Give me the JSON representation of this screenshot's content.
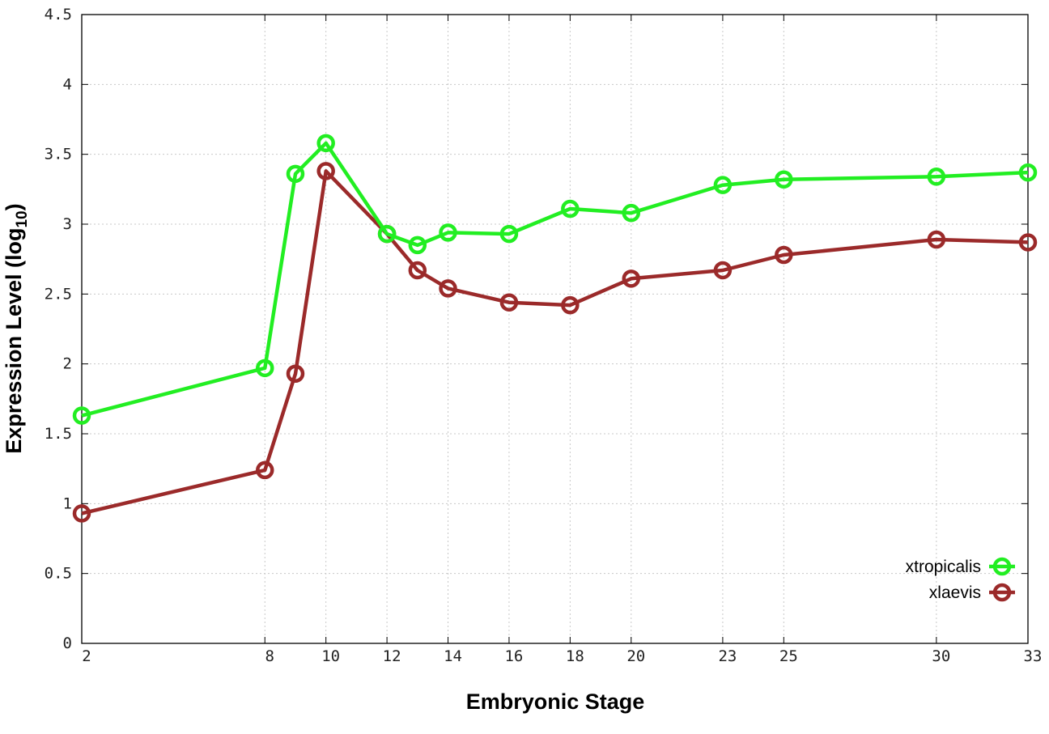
{
  "chart_data": {
    "type": "line",
    "title": "",
    "xlabel": "Embryonic Stage",
    "ylabel": "Expression Level (log",
    "ylabel_sub": "10",
    "ylabel_end": ")",
    "xlim": [
      2,
      33
    ],
    "ylim": [
      0,
      4.5
    ],
    "x_ticks": [
      2,
      8,
      10,
      12,
      14,
      16,
      18,
      20,
      23,
      25,
      30,
      33
    ],
    "y_ticks": [
      0,
      0.5,
      1,
      1.5,
      2,
      2.5,
      3,
      3.5,
      4,
      4.5
    ],
    "y_tick_labels": [
      "0",
      "0.5",
      "1",
      "1.5",
      "2",
      "2.5",
      "3",
      "3.5",
      "4",
      "4.5"
    ],
    "grid": true,
    "legend_position": "bottom-right",
    "x": [
      2,
      8,
      9,
      10,
      12,
      13,
      14,
      16,
      18,
      20,
      23,
      25,
      30,
      33
    ],
    "series": [
      {
        "name": "xtropicalis",
        "color": "#22ee22",
        "values": [
          1.63,
          1.97,
          3.36,
          3.58,
          2.93,
          2.85,
          2.94,
          2.93,
          3.11,
          3.08,
          3.28,
          3.32,
          3.34,
          3.37
        ]
      },
      {
        "name": "xlaevis",
        "color": "#9b2a2a",
        "values": [
          0.93,
          1.24,
          1.93,
          3.38,
          2.93,
          2.67,
          2.54,
          2.44,
          2.42,
          2.61,
          2.67,
          2.78,
          2.89,
          2.87
        ]
      }
    ]
  }
}
